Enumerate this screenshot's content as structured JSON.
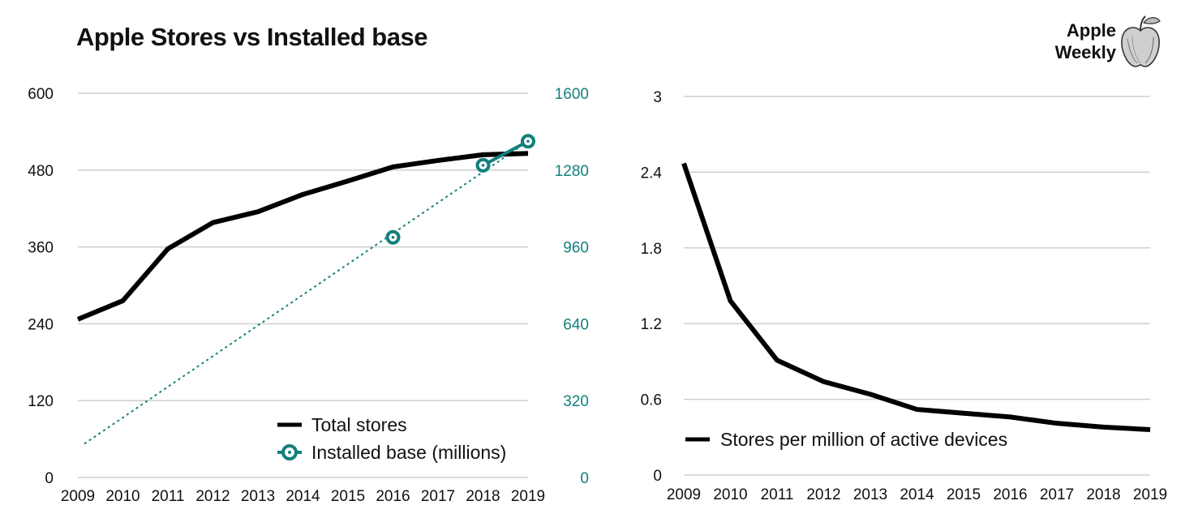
{
  "header": {
    "title": "Apple Stores vs Installed base",
    "brand_line1": "Apple",
    "brand_line2": "Weekly",
    "logo_icon": "apple-sketch-icon"
  },
  "colors": {
    "stores_line": "#000000",
    "installed_base": "#12807d",
    "grid": "#cfcfcf",
    "axis_text": "#111111",
    "right_axis_text": "#12807d"
  },
  "chart_data": [
    {
      "type": "line",
      "title": "Apple Stores vs Installed base",
      "x": [
        "2009",
        "2010",
        "2011",
        "2012",
        "2013",
        "2014",
        "2015",
        "2016",
        "2017",
        "2018",
        "2019"
      ],
      "y_left": {
        "ylim": [
          0,
          600
        ],
        "ticks": [
          "0",
          "120",
          "240",
          "360",
          "480",
          "600"
        ]
      },
      "y_right": {
        "ylim": [
          0,
          1600
        ],
        "ticks": [
          "0",
          "320",
          "640",
          "960",
          "1280",
          "1600"
        ]
      },
      "series": [
        {
          "name": "Total stores",
          "axis": "left",
          "style": "solid",
          "values": [
            247,
            276,
            357,
            398,
            415,
            442,
            463,
            485,
            495,
            504,
            506
          ]
        },
        {
          "name": "Installed base (millions)",
          "axis": "right",
          "style": "markers",
          "points": [
            {
              "x": "2016",
              "y": 1000
            },
            {
              "x": "2018",
              "y": 1300
            },
            {
              "x": "2019",
              "y": 1400
            }
          ]
        }
      ],
      "trendline": {
        "axis": "right",
        "style": "dotted",
        "from": {
          "x": "2009",
          "y": 120
        },
        "to": {
          "x": "2019",
          "y": 1400
        }
      },
      "grid": true,
      "legend": "bottom-right"
    },
    {
      "type": "line",
      "x": [
        "2009",
        "2010",
        "2011",
        "2012",
        "2013",
        "2014",
        "2015",
        "2016",
        "2017",
        "2018",
        "2019"
      ],
      "y": {
        "ylim": [
          0,
          3
        ],
        "ticks": [
          "0",
          "0.6",
          "1.2",
          "1.8",
          "2.4",
          "3"
        ]
      },
      "series": [
        {
          "name": "Stores per million of active devices",
          "style": "solid",
          "values": [
            2.47,
            1.38,
            0.91,
            0.74,
            0.64,
            0.52,
            0.49,
            0.46,
            0.41,
            0.38,
            0.36
          ]
        }
      ],
      "grid": true,
      "legend": "bottom-left"
    }
  ]
}
